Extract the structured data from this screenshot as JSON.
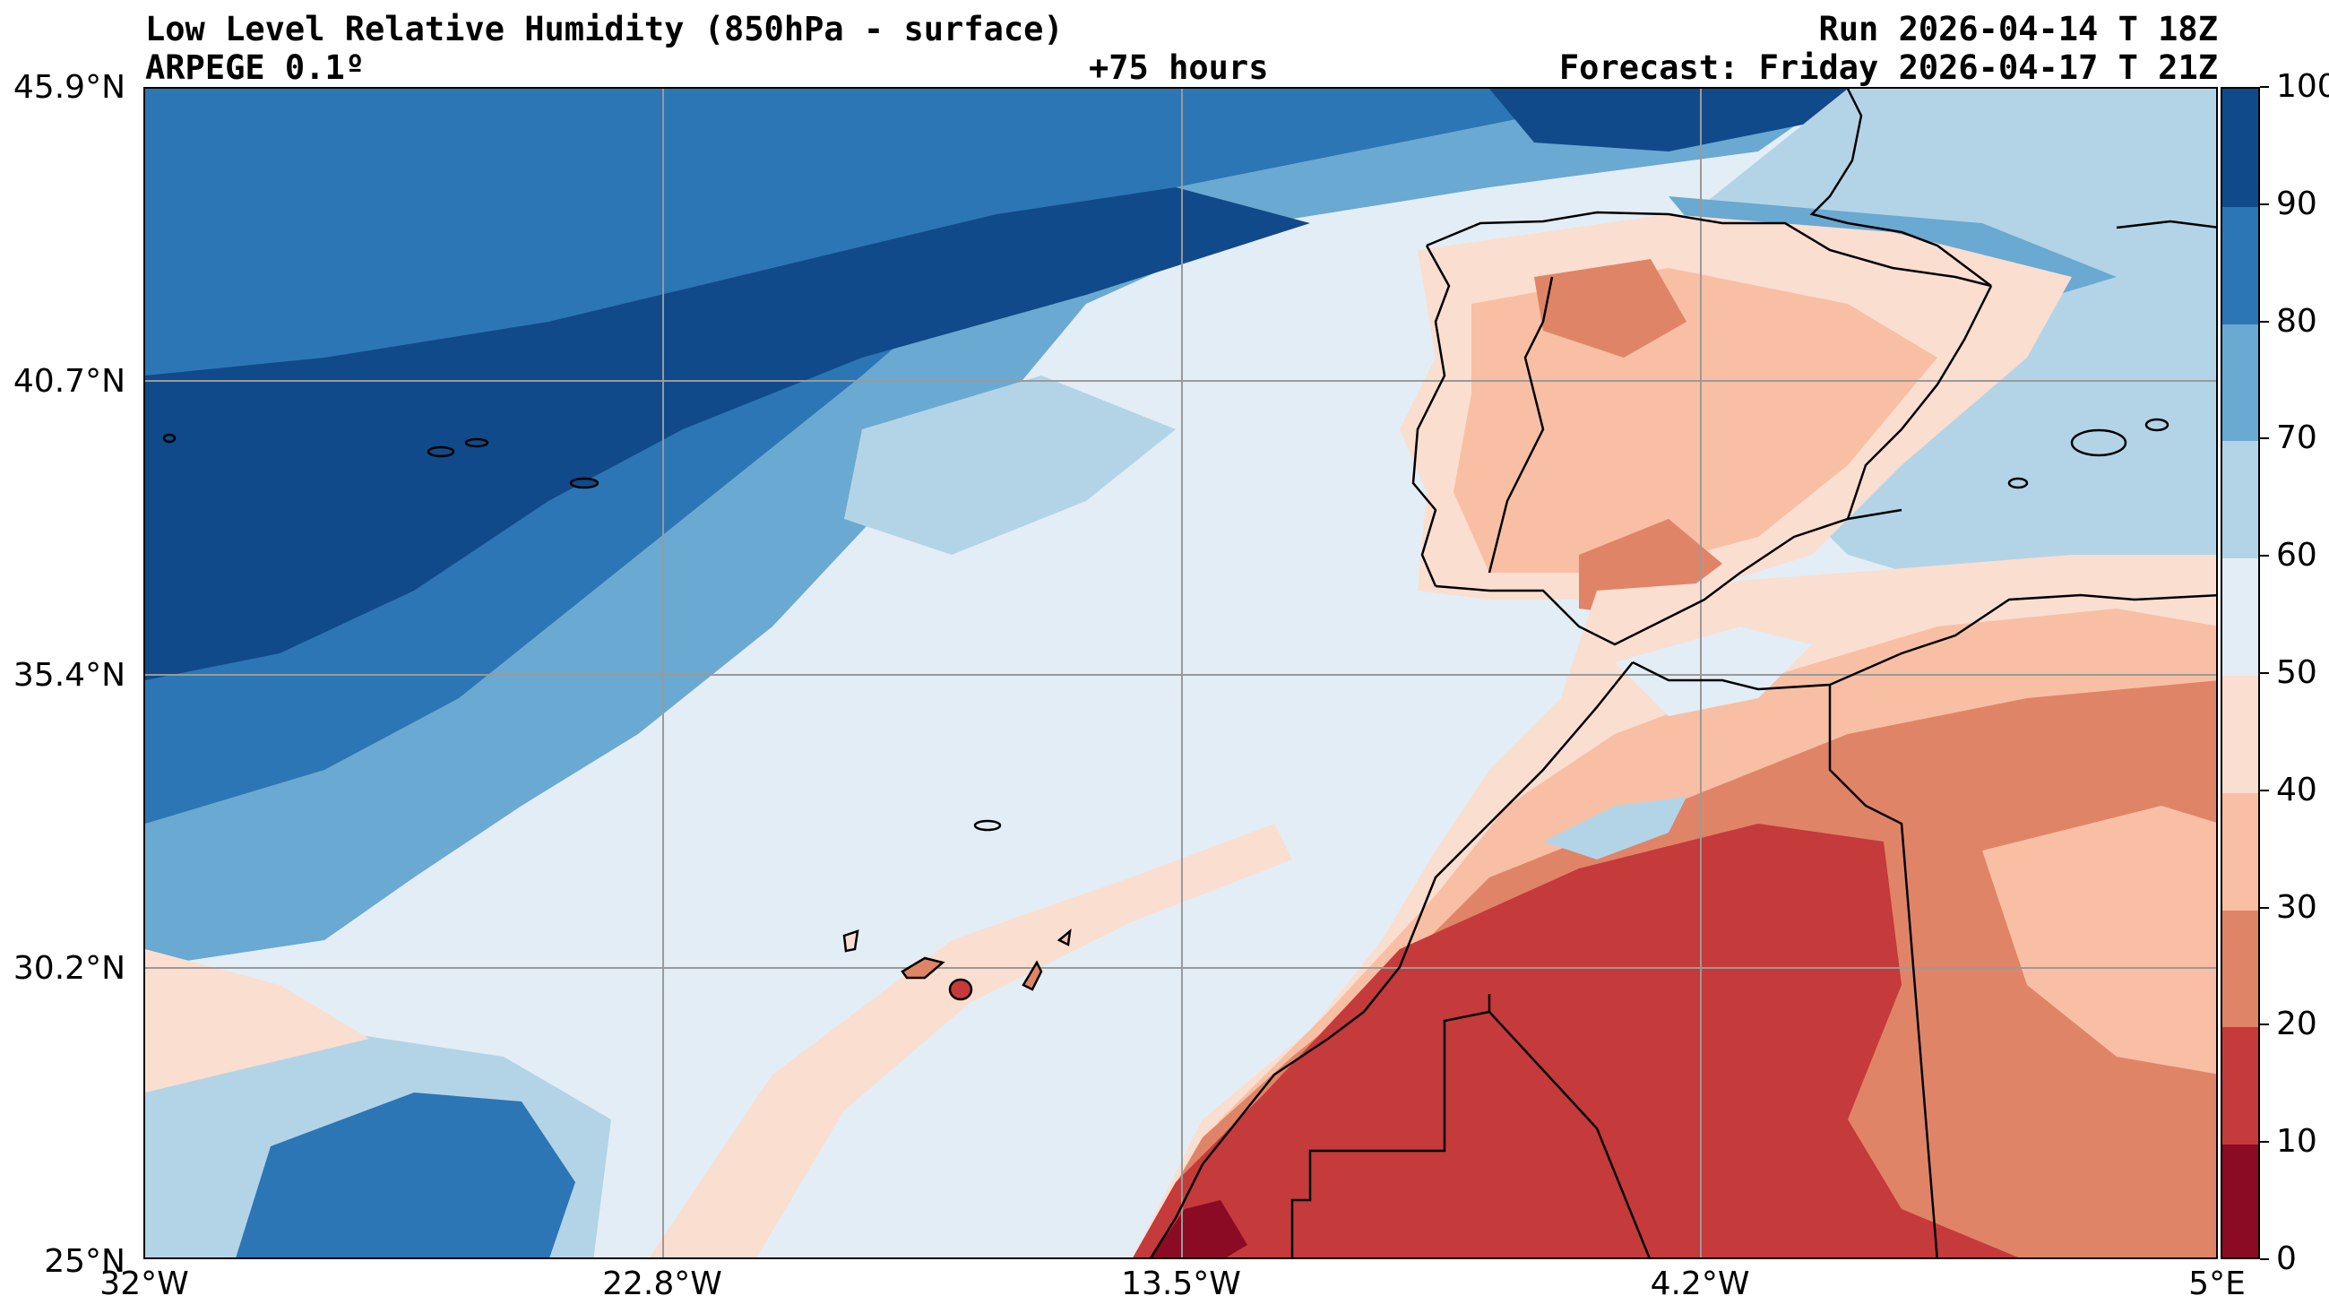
{
  "header": {
    "title": "Low Level Relative Humidity (850hPa - surface)",
    "model": "ARPEGE 0.1º",
    "lead": "+75 hours",
    "run": "Run 2026-04-14 T 18Z",
    "forecast": "Forecast: Friday 2026-04-17 T 21Z"
  },
  "map": {
    "lat_labels": [
      "45.9°N",
      "40.7°N",
      "35.4°N",
      "30.2°N",
      "25°N"
    ],
    "lon_labels": [
      "32°W",
      "22.8°W",
      "13.5°W",
      "4.2°W",
      "5°E"
    ],
    "extent": {
      "lon_min": -32,
      "lon_max": 5,
      "lat_min": 25,
      "lat_max": 45.9
    }
  },
  "colorbar": {
    "levels": [
      "0",
      "10",
      "20",
      "30",
      "40",
      "50",
      "60",
      "70",
      "80",
      "90",
      "100"
    ],
    "colors": [
      "#8b0a24",
      "#c53a3b",
      "#e08467",
      "#f8bfa5",
      "#faded0",
      "#e3edf5",
      "#b3d4e7",
      "#6aa9d1",
      "#2c76b5",
      "#114a8a"
    ]
  }
}
